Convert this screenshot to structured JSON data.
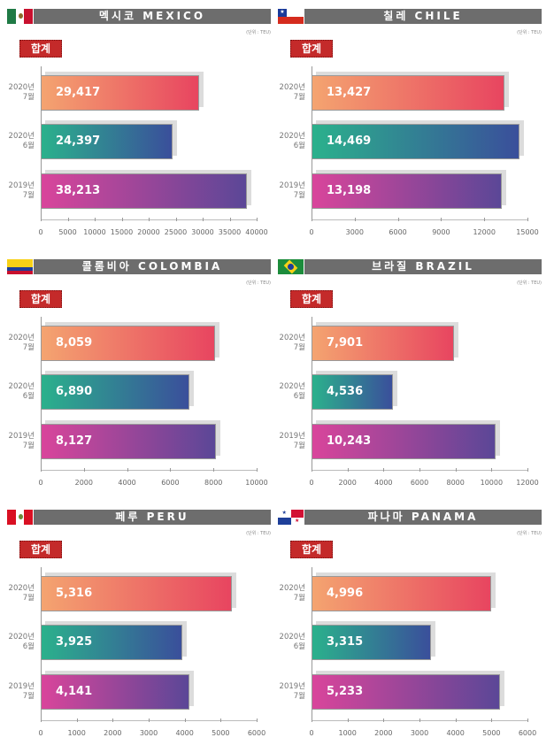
{
  "unit_label": "(단위 : TEU)",
  "badge_label": "합계",
  "categories": [
    [
      "2020년",
      "7월"
    ],
    [
      "2020년",
      "6월"
    ],
    [
      "2019년",
      "7월"
    ]
  ],
  "gradients": [
    [
      "#f4a470",
      "#e84560"
    ],
    [
      "#2bb18c",
      "#3a4f9b"
    ],
    [
      "#d9459b",
      "#5b4797"
    ]
  ],
  "chart_data": [
    {
      "type": "bar",
      "title": "멕시코 MEXICO",
      "flag": "mexico-flag",
      "values": [
        29417,
        24397,
        38213
      ],
      "labels": [
        "29,417",
        "24,397",
        "38,213"
      ],
      "ticks": [
        0,
        5000,
        10000,
        15000,
        20000,
        25000,
        30000,
        35000,
        40000
      ],
      "xlim": [
        0,
        40000
      ]
    },
    {
      "type": "bar",
      "title": "칠레 CHILE",
      "flag": "chile-flag",
      "values": [
        13427,
        14469,
        13198
      ],
      "labels": [
        "13,427",
        "14,469",
        "13,198"
      ],
      "ticks": [
        0,
        3000,
        6000,
        9000,
        12000,
        15000
      ],
      "xlim": [
        0,
        15000
      ]
    },
    {
      "type": "bar",
      "title": "콜롬비아 COLOMBIA",
      "flag": "colombia-flag",
      "values": [
        8059,
        6890,
        8127
      ],
      "labels": [
        "8,059",
        "6,890",
        "8,127"
      ],
      "ticks": [
        0,
        2000,
        4000,
        6000,
        8000,
        10000
      ],
      "xlim": [
        0,
        10000
      ]
    },
    {
      "type": "bar",
      "title": "브라질 BRAZIL",
      "flag": "brazil-flag",
      "values": [
        7901,
        4536,
        10243
      ],
      "labels": [
        "7,901",
        "4,536",
        "10,243"
      ],
      "ticks": [
        0,
        2000,
        4000,
        6000,
        8000,
        10000,
        12000
      ],
      "xlim": [
        0,
        12000
      ]
    },
    {
      "type": "bar",
      "title": "페루 PERU",
      "flag": "peru-flag",
      "values": [
        5316,
        3925,
        4141
      ],
      "labels": [
        "5,316",
        "3,925",
        "4,141"
      ],
      "ticks": [
        0,
        1000,
        2000,
        3000,
        4000,
        5000,
        6000
      ],
      "xlim": [
        0,
        6000
      ]
    },
    {
      "type": "bar",
      "title": "파나마 PANAMA",
      "flag": "panama-flag",
      "values": [
        4996,
        3315,
        5233
      ],
      "labels": [
        "4,996",
        "3,315",
        "5,233"
      ],
      "ticks": [
        0,
        1000,
        2000,
        3000,
        4000,
        5000,
        6000
      ],
      "xlim": [
        0,
        6000
      ]
    }
  ]
}
